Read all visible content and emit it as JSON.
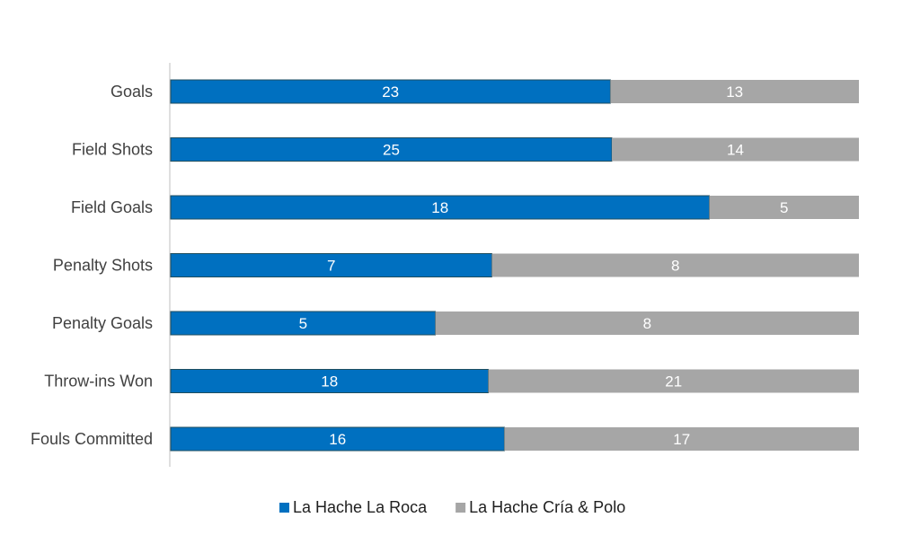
{
  "chart_data": {
    "type": "bar",
    "orientation": "horizontal",
    "stacking": "percent",
    "categories": [
      "Goals",
      "Field Shots",
      "Field Goals",
      "Penalty Shots",
      "Penalty Goals",
      "Throw-ins Won",
      "Fouls Committed"
    ],
    "series": [
      {
        "name": "La Hache La Roca",
        "values": [
          23,
          25,
          18,
          7,
          5,
          18,
          16
        ],
        "color": "#0070C0"
      },
      {
        "name": "La Hache Cría & Polo",
        "values": [
          13,
          14,
          5,
          8,
          8,
          21,
          17
        ],
        "color": "#A6A6A6"
      }
    ],
    "xlim": [
      0,
      1
    ],
    "legend_position": "bottom",
    "grid": false
  }
}
